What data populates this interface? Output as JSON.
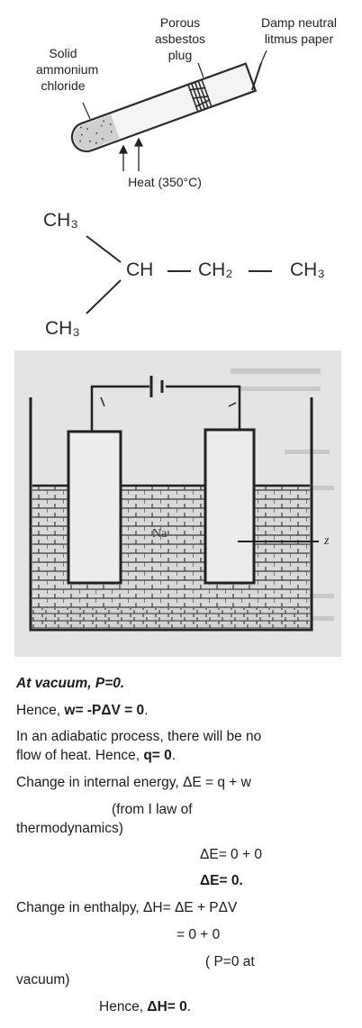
{
  "figure1": {
    "label_solid": "Solid",
    "label_ammonium": "ammonium",
    "label_chloride": "chloride",
    "label_porous": "Porous",
    "label_asbestos": "asbestos",
    "label_plug": "plug",
    "label_damp": "Damp neutral",
    "label_litmus": "litmus paper",
    "label_heat": "Heat (350°C)"
  },
  "structure": {
    "ch3_top": "CH₃",
    "ch": "CH",
    "ch2": "CH₂",
    "ch3_right": "CH₃",
    "ch3_bottom": "CH₃"
  },
  "figure3": {
    "label_na": "Na",
    "label_z": "z"
  },
  "solution": {
    "l1": "At vacuum, P=0.",
    "l2a": "Hence, ",
    "l2b": "w= -PΔV = 0",
    "l2c": ".",
    "l3": "In an adiabatic process, there will be no",
    "l4a": "flow of heat. Hence, ",
    "l4b": "q= 0",
    "l4c": ".",
    "l5": "Change in internal energy, ΔE = q + w",
    "l6": "(from I law of",
    "l7": "thermodynamics)",
    "l8": "ΔE= 0 + 0",
    "l9": "ΔE= 0.",
    "l10": "Change in enthalpy, ΔH= ΔE + PΔV",
    "l11": "= 0 + 0",
    "l12": "( P=0 at",
    "l13": "vacuum)",
    "l14a": "Hence, ",
    "l14b": "ΔH= 0",
    "l14c": "."
  }
}
